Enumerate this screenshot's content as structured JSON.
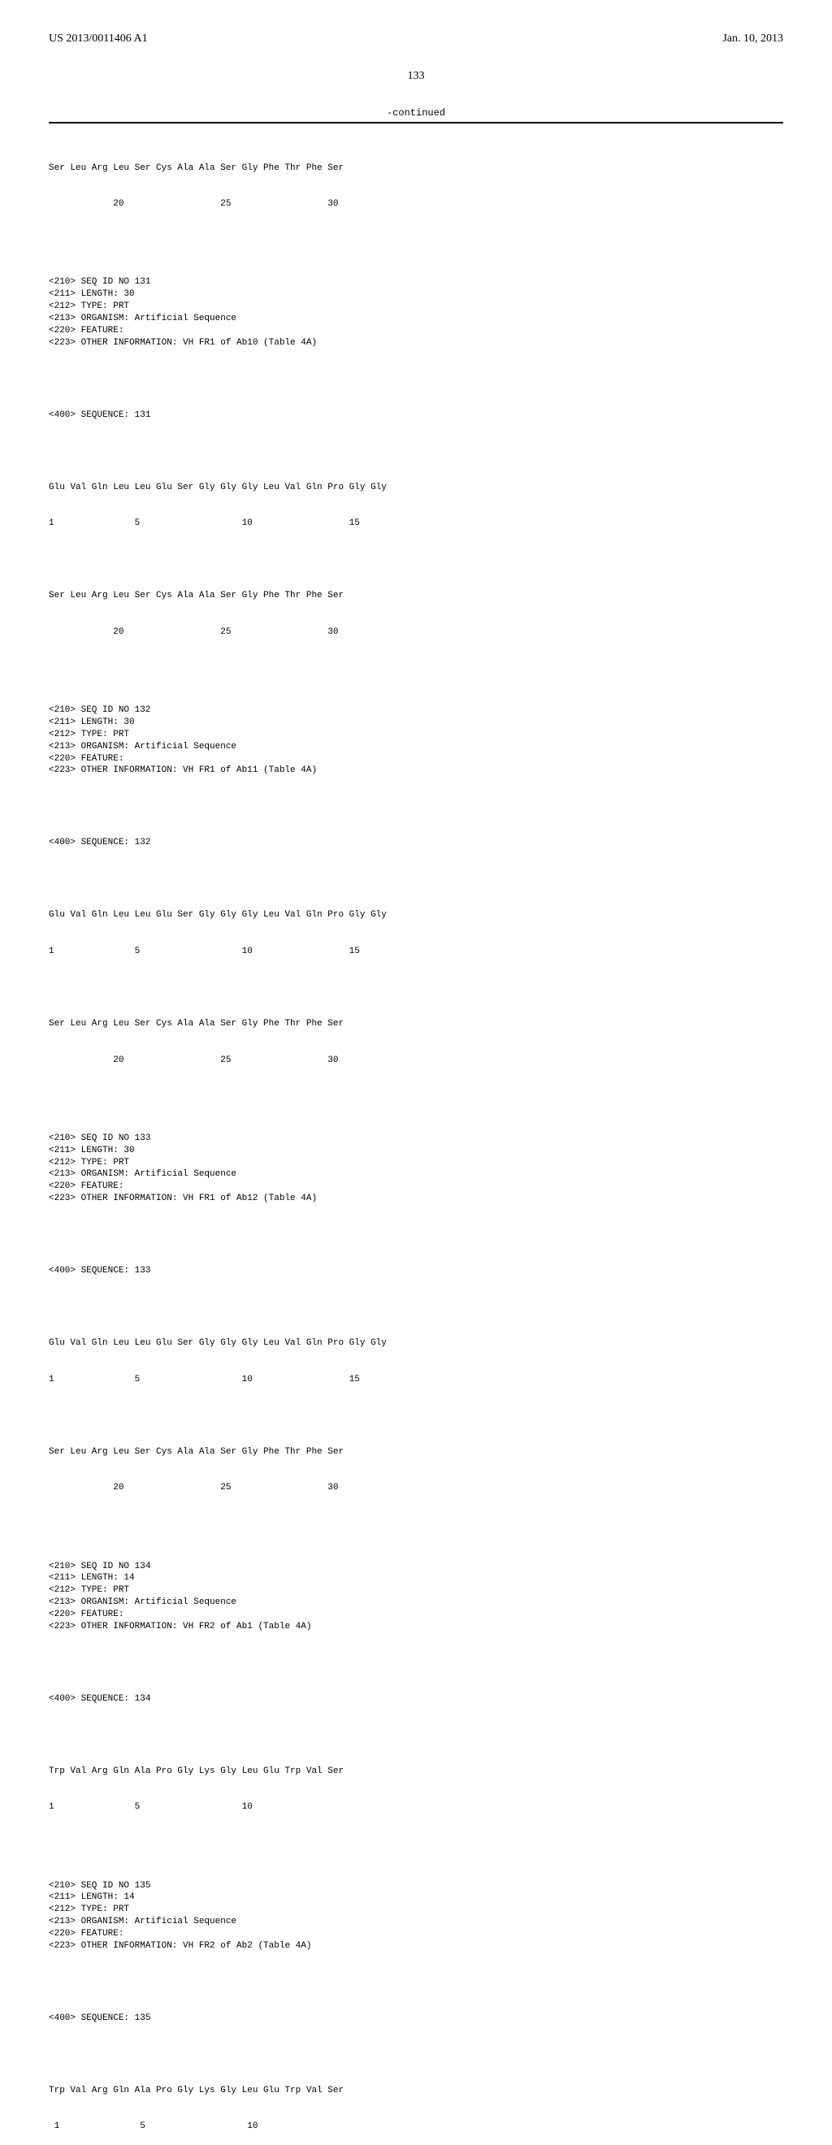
{
  "header": {
    "patent_number": "US 2013/0011406 A1",
    "date": "Jan. 10, 2013"
  },
  "page_number": "133",
  "continued_label": "-continued",
  "frag_top": {
    "seq_line": "Ser Leu Arg Leu Ser Cys Ala Ala Ser Gly Phe Thr Phe Ser",
    "num_line": "            20                  25                  30"
  },
  "entries": [
    {
      "meta": "<210> SEQ ID NO 131\n<211> LENGTH: 30\n<212> TYPE: PRT\n<213> ORGANISM: Artificial Sequence\n<220> FEATURE:\n<223> OTHER INFORMATION: VH FR1 of Ab10 (Table 4A)",
      "seq_label": "<400> SEQUENCE: 131",
      "seq_line1": "Glu Val Gln Leu Leu Glu Ser Gly Gly Gly Leu Val Gln Pro Gly Gly",
      "num_line1": "1               5                   10                  15",
      "seq_line2": "Ser Leu Arg Leu Ser Cys Ala Ala Ser Gly Phe Thr Phe Ser",
      "num_line2": "            20                  25                  30"
    },
    {
      "meta": "<210> SEQ ID NO 132\n<211> LENGTH: 30\n<212> TYPE: PRT\n<213> ORGANISM: Artificial Sequence\n<220> FEATURE:\n<223> OTHER INFORMATION: VH FR1 of Ab11 (Table 4A)",
      "seq_label": "<400> SEQUENCE: 132",
      "seq_line1": "Glu Val Gln Leu Leu Glu Ser Gly Gly Gly Leu Val Gln Pro Gly Gly",
      "num_line1": "1               5                   10                  15",
      "seq_line2": "Ser Leu Arg Leu Ser Cys Ala Ala Ser Gly Phe Thr Phe Ser",
      "num_line2": "            20                  25                  30"
    },
    {
      "meta": "<210> SEQ ID NO 133\n<211> LENGTH: 30\n<212> TYPE: PRT\n<213> ORGANISM: Artificial Sequence\n<220> FEATURE:\n<223> OTHER INFORMATION: VH FR1 of Ab12 (Table 4A)",
      "seq_label": "<400> SEQUENCE: 133",
      "seq_line1": "Glu Val Gln Leu Leu Glu Ser Gly Gly Gly Leu Val Gln Pro Gly Gly",
      "num_line1": "1               5                   10                  15",
      "seq_line2": "Ser Leu Arg Leu Ser Cys Ala Ala Ser Gly Phe Thr Phe Ser",
      "num_line2": "            20                  25                  30"
    },
    {
      "meta": "<210> SEQ ID NO 134\n<211> LENGTH: 14\n<212> TYPE: PRT\n<213> ORGANISM: Artificial Sequence\n<220> FEATURE:\n<223> OTHER INFORMATION: VH FR2 of Ab1 (Table 4A)",
      "seq_label": "<400> SEQUENCE: 134",
      "seq_line1": "Trp Val Arg Gln Ala Pro Gly Lys Gly Leu Glu Trp Val Ser",
      "num_line1": "1               5                   10",
      "seq_line2": "",
      "num_line2": ""
    },
    {
      "meta": "<210> SEQ ID NO 135\n<211> LENGTH: 14\n<212> TYPE: PRT\n<213> ORGANISM: Artificial Sequence\n<220> FEATURE:\n<223> OTHER INFORMATION: VH FR2 of Ab2 (Table 4A)",
      "seq_label": "<400> SEQUENCE: 135",
      "seq_line1": "Trp Val Arg Gln Ala Pro Gly Lys Gly Leu Glu Trp Val Ser",
      "num_line1": " 1               5                   10",
      "seq_line2": "",
      "num_line2": ""
    }
  ]
}
